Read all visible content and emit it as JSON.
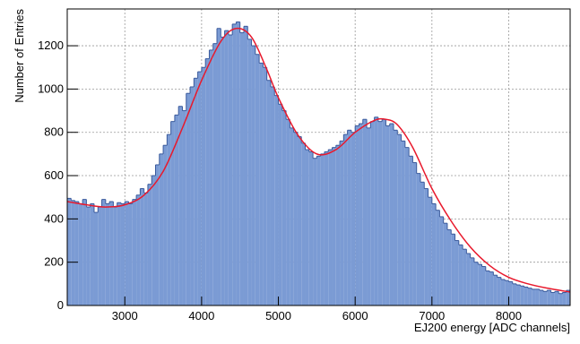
{
  "chart_data": {
    "type": "histogram",
    "x_label": "EJ200 energy [ADC channels]",
    "y_label": "Number of Entries",
    "color": "#7b9bd4",
    "edge_color": "#3a5a9c",
    "grid": true,
    "xlim": [
      2250,
      8800
    ],
    "ylim": [
      0,
      1370
    ],
    "xticks": [
      3000,
      4000,
      5000,
      6000,
      7000,
      8000
    ],
    "yticks": [
      0,
      200,
      400,
      600,
      800,
      1000,
      1200
    ],
    "bins": [
      2250,
      2300,
      2350,
      2400,
      2450,
      2500,
      2550,
      2600,
      2650,
      2700,
      2750,
      2800,
      2850,
      2900,
      2950,
      3000,
      3050,
      3100,
      3150,
      3200,
      3250,
      3300,
      3350,
      3400,
      3450,
      3500,
      3550,
      3600,
      3650,
      3700,
      3750,
      3800,
      3850,
      3900,
      3950,
      4000,
      4050,
      4100,
      4150,
      4200,
      4250,
      4300,
      4350,
      4400,
      4450,
      4500,
      4550,
      4600,
      4650,
      4700,
      4750,
      4800,
      4850,
      4900,
      4950,
      5000,
      5050,
      5100,
      5150,
      5200,
      5250,
      5300,
      5350,
      5400,
      5450,
      5500,
      5550,
      5600,
      5650,
      5700,
      5750,
      5800,
      5850,
      5900,
      5950,
      6000,
      6050,
      6100,
      6150,
      6200,
      6250,
      6300,
      6350,
      6400,
      6450,
      6500,
      6550,
      6600,
      6650,
      6700,
      6750,
      6800,
      6850,
      6900,
      6950,
      7000,
      7050,
      7100,
      7150,
      7200,
      7250,
      7300,
      7350,
      7400,
      7450,
      7500,
      7550,
      7600,
      7650,
      7700,
      7750,
      7800,
      7850,
      7900,
      7950,
      8000,
      8050,
      8100,
      8150,
      8200,
      8250,
      8300,
      8350,
      8400,
      8450,
      8500,
      8550,
      8600,
      8650,
      8700,
      8750,
      8800
    ],
    "values": [
      495,
      485,
      480,
      470,
      490,
      455,
      470,
      430,
      455,
      490,
      470,
      480,
      455,
      475,
      470,
      480,
      470,
      490,
      510,
      540,
      520,
      560,
      600,
      650,
      700,
      740,
      790,
      850,
      880,
      920,
      900,
      980,
      1010,
      1050,
      1080,
      1100,
      1140,
      1180,
      1210,
      1280,
      1240,
      1270,
      1250,
      1300,
      1310,
      1260,
      1290,
      1230,
      1200,
      1160,
      1120,
      1100,
      1040,
      1010,
      970,
      930,
      900,
      860,
      820,
      800,
      780,
      750,
      720,
      710,
      680,
      690,
      700,
      710,
      720,
      730,
      740,
      760,
      790,
      810,
      800,
      830,
      840,
      860,
      820,
      850,
      870,
      850,
      860,
      830,
      840,
      810,
      790,
      760,
      730,
      690,
      660,
      610,
      570,
      540,
      500,
      470,
      440,
      410,
      380,
      350,
      330,
      300,
      280,
      260,
      240,
      220,
      200,
      190,
      180,
      160,
      155,
      140,
      130,
      120,
      115,
      110,
      100,
      95,
      90,
      85,
      80,
      75,
      75,
      70,
      65,
      70,
      60,
      65,
      55,
      60,
      70
    ],
    "fit": {
      "color": "#e8192c",
      "x": [
        2250,
        2500,
        2750,
        3000,
        3250,
        3500,
        3750,
        4000,
        4250,
        4450,
        4650,
        4850,
        5000,
        5250,
        5500,
        5750,
        6000,
        6250,
        6400,
        6550,
        6750,
        7000,
        7250,
        7500,
        7750,
        8000,
        8250,
        8500,
        8800
      ],
      "values": [
        480,
        465,
        455,
        465,
        510,
        620,
        820,
        1040,
        1220,
        1280,
        1240,
        1090,
        960,
        790,
        700,
        720,
        800,
        855,
        860,
        835,
        730,
        540,
        390,
        270,
        185,
        130,
        100,
        80,
        62
      ]
    }
  }
}
